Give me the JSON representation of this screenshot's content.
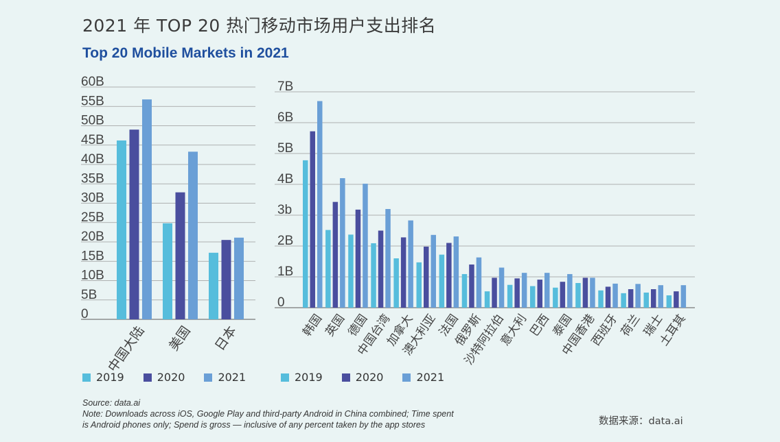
{
  "title_cn": "2021 年 TOP 20 热门移动市场用户支出排名",
  "title_en": "Top 20 Mobile Markets in 2021",
  "colors": {
    "2019": "#56bddc",
    "2020": "#4a4e9e",
    "2021": "#6a9fd6",
    "axis": "#888888",
    "grid": "#9a9a9a"
  },
  "chart_data": [
    {
      "type": "bar",
      "categories": [
        "中国大陆",
        "美国",
        "日本"
      ],
      "series": [
        {
          "name": "2019",
          "values": [
            46.2,
            24.8,
            17.2
          ]
        },
        {
          "name": "2020",
          "values": [
            49.0,
            32.8,
            20.5
          ]
        },
        {
          "name": "2021",
          "values": [
            56.8,
            43.3,
            21.1
          ]
        }
      ],
      "yticks": [
        "0",
        "5B",
        "10B",
        "15B",
        "20B",
        "25B",
        "30B",
        "35B",
        "40B",
        "45B",
        "50B",
        "55B",
        "60B"
      ],
      "ylim": [
        0,
        60
      ]
    },
    {
      "type": "bar",
      "categories": [
        "韩国",
        "英国",
        "德国",
        "中国台湾",
        "加拿大",
        "澳大利亚",
        "法国",
        "俄罗斯",
        "沙特阿拉伯",
        "意大利",
        "巴西",
        "泰国",
        "中国香港",
        "西班牙",
        "荷兰",
        "瑞士",
        "土耳其"
      ],
      "series": [
        {
          "name": "2019",
          "values": [
            4.78,
            2.52,
            2.37,
            2.09,
            1.6,
            1.47,
            1.72,
            1.09,
            0.53,
            0.74,
            0.7,
            0.65,
            0.8,
            0.56,
            0.47,
            0.49,
            0.4
          ]
        },
        {
          "name": "2020",
          "values": [
            5.72,
            3.43,
            3.18,
            2.5,
            2.28,
            1.98,
            2.1,
            1.4,
            0.97,
            0.95,
            0.91,
            0.84,
            0.97,
            0.68,
            0.6,
            0.6,
            0.53
          ]
        },
        {
          "name": "2021",
          "values": [
            6.7,
            4.2,
            4.02,
            3.2,
            2.83,
            2.36,
            2.31,
            1.63,
            1.3,
            1.13,
            1.13,
            1.09,
            0.97,
            0.78,
            0.77,
            0.73,
            0.73
          ]
        }
      ],
      "yticks": [
        "0",
        "1B",
        "2B",
        "3b",
        "4B",
        "5B",
        "6B",
        "7B"
      ],
      "ylim": [
        0,
        7
      ]
    }
  ],
  "legend_left": [
    "2019",
    "2020",
    "2021"
  ],
  "legend_right": [
    "2019",
    "2020",
    "2021"
  ],
  "footnote": {
    "line1": "Source: data.ai",
    "line2": "Note: Downloads across iOS, Google Play and third-party Android in China combined; Time spent",
    "line3": "is Android phones only; Spend is gross — inclusive of any percent taken by the app stores"
  },
  "source_cn": "数据来源：data.ai"
}
